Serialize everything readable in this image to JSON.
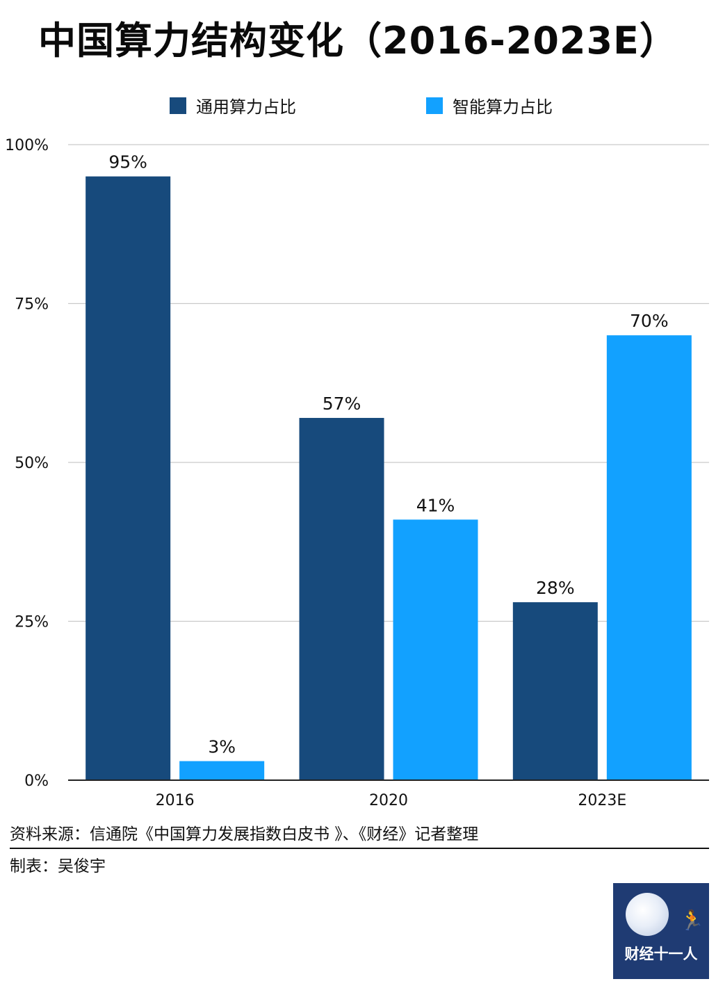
{
  "page": {
    "title": "中国算力结构变化（2016-2023E）",
    "source": "资料来源：信通院《中国算力发展指数白皮书 》、《财经》记者整理",
    "maker": "制表：吴俊宇",
    "logo_text": "财经十一人"
  },
  "legend": [
    {
      "label": "通用算力占比",
      "color": "#174a7c"
    },
    {
      "label": "智能算力占比",
      "color": "#12a1ff"
    }
  ],
  "chart_data": {
    "type": "bar",
    "categories": [
      "2016",
      "2020",
      "2023E"
    ],
    "series": [
      {
        "name": "通用算力占比",
        "color": "#174a7c",
        "values": [
          95,
          57,
          28
        ],
        "labels": [
          "95%",
          "57%",
          "28%"
        ]
      },
      {
        "name": "智能算力占比",
        "color": "#12a1ff",
        "values": [
          3,
          41,
          70
        ],
        "labels": [
          "3%",
          "41%",
          "70%"
        ]
      }
    ],
    "yticks": [
      0,
      25,
      50,
      75,
      100
    ],
    "ytick_labels": [
      "0%",
      "25%",
      "50%",
      "75%",
      "100%"
    ],
    "ylim": [
      0,
      100
    ],
    "grid": true,
    "legend_position": "top"
  }
}
